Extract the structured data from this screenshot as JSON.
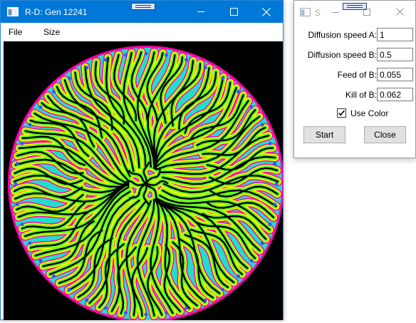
{
  "main_window": {
    "title": "R-D: Gen 12241",
    "menu": [
      {
        "label": "File"
      },
      {
        "label": "Size"
      }
    ],
    "caption_icons": [
      "minimize-icon",
      "maximize-icon",
      "close-icon"
    ],
    "colors": {
      "titlebar": "#0078d7",
      "canvas_background": "#000000",
      "pattern_outer": "#ff00aa",
      "pattern_mid": "#ffff00",
      "pattern_body": "#66ff22",
      "pattern_core": "#22ddcc"
    }
  },
  "settings_window": {
    "title": "S",
    "fields": [
      {
        "label": "Diffusion speed A:",
        "value": "1"
      },
      {
        "label": "Diffusion speed B:",
        "value": "0.5"
      },
      {
        "label": "Feed of B:",
        "value": "0.055"
      },
      {
        "label": "Kill of B:",
        "value": "0.062"
      }
    ],
    "use_color": {
      "label": "Use Color",
      "checked": true
    },
    "buttons": {
      "start": "Start",
      "close": "Close"
    }
  }
}
